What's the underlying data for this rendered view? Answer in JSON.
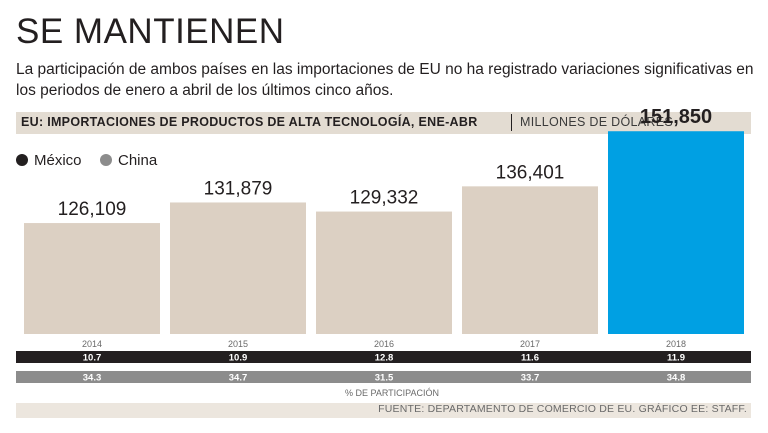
{
  "header": {
    "title": "SE MANTIENEN",
    "subtitle": "La participación de ambos países en las importaciones de EU no ha registrado variaciones significativas en los periodos de enero a abril de los últimos cinco años."
  },
  "chart_data": {
    "type": "bar",
    "title": "EU: IMPORTACIONES DE PRODUCTOS DE ALTA TECNOLOGÍA, ENE-ABR",
    "units": "MILLONES DE DÓLARES",
    "categories": [
      "2014",
      "2015",
      "2016",
      "2017",
      "2018"
    ],
    "values": [
      126109,
      131879,
      129332,
      136401,
      151850
    ],
    "value_labels": [
      "126,109",
      "131,879",
      "129,332",
      "136,401",
      "151,850"
    ],
    "highlight_index": 4,
    "legend": [
      "México",
      "China"
    ],
    "share_label": "% DE PARTICIPACIÓN",
    "share_series": [
      {
        "name": "México",
        "values": [
          "10.7",
          "10.9",
          "12.8",
          "11.6",
          "11.9"
        ]
      },
      {
        "name": "China",
        "values": [
          "34.3",
          "34.7",
          "31.5",
          "33.7",
          "34.8"
        ]
      }
    ],
    "ylim": [
      95000,
      155000
    ]
  },
  "colors": {
    "bar": "#dcd0c3",
    "highlight": "#00a0e3",
    "mexico": "#231f20",
    "china": "#8c8c8c",
    "strip": "#ece6de"
  },
  "footer": {
    "source": "FUENTE: DEPARTAMENTO DE COMERCIO DE EU. GRÁFICO EE: STAFF."
  }
}
